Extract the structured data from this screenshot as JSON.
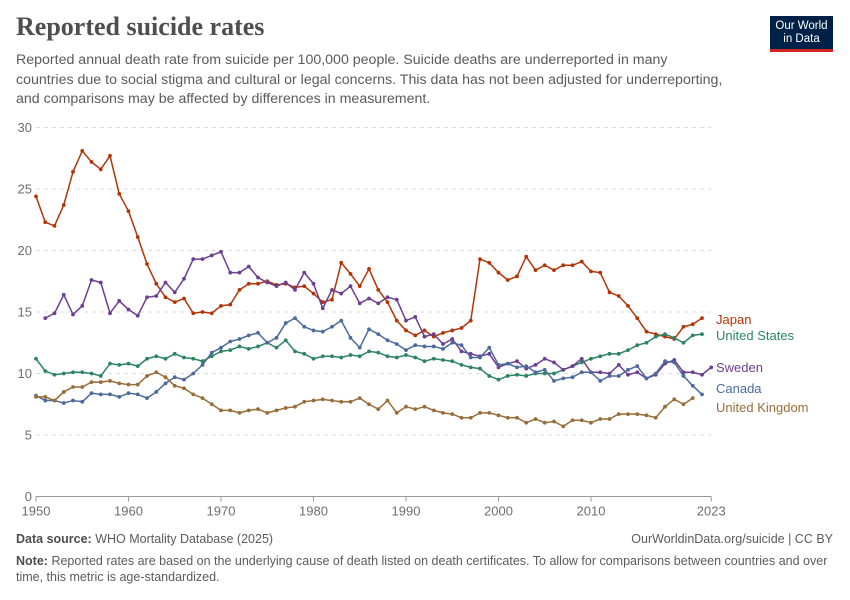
{
  "title": "Reported suicide rates",
  "subtitle_lines": [
    "Reported annual death rate from suicide per 100,000 people. Suicide deaths are underreported in many",
    "countries due to social stigma and cultural or legal concerns. This data has not been adjusted for underreporting,",
    "and comparisons may be affected by differences in measurement."
  ],
  "logo": {
    "line1": "Our World",
    "line2": "in Data"
  },
  "footer": {
    "source_label": "Data source:",
    "source_text": "WHO Mortality Database (2025)",
    "license": "OurWorldinData.org/suicide | CC BY",
    "note_label": "Note:",
    "note_text": "Reported rates are based on the underlying cause of death listed on death certificates. To allow for comparisons between countries and over time, this metric is age-standardized."
  },
  "chart_data": {
    "type": "line",
    "title": "Reported suicide rates",
    "xlabel": "",
    "ylabel": "",
    "xlim": [
      1950,
      2023
    ],
    "ylim": [
      0,
      30
    ],
    "x_ticks": [
      "1950",
      "1960",
      "1970",
      "1980",
      "1990",
      "2000",
      "2010",
      "2023"
    ],
    "y_ticks": [
      "0",
      "5",
      "10",
      "15",
      "20",
      "25",
      "30"
    ],
    "grid": "horizontal dashed",
    "legend": "right (end-of-line labels)",
    "series": [
      {
        "name": "Japan",
        "color": "#b13507",
        "start_year": 1950,
        "values": [
          24.4,
          22.3,
          22.0,
          23.7,
          26.4,
          28.1,
          27.2,
          26.6,
          27.7,
          24.6,
          23.2,
          21.1,
          18.9,
          17.3,
          16.2,
          15.8,
          16.1,
          14.9,
          15.0,
          14.9,
          15.5,
          15.6,
          16.8,
          17.3,
          17.3,
          17.5,
          17.2,
          17.3,
          17.0,
          17.1,
          16.5,
          15.8,
          16.0,
          19.0,
          18.1,
          17.1,
          18.5,
          16.8,
          15.8,
          14.3,
          13.5,
          13.1,
          13.5,
          13.0,
          13.3,
          13.5,
          13.7,
          14.3,
          19.3,
          19.0,
          18.2,
          17.6,
          17.9,
          19.5,
          18.4,
          18.8,
          18.4,
          18.8,
          18.8,
          19.1,
          18.3,
          18.2,
          16.6,
          16.3,
          15.5,
          14.5,
          13.4,
          13.2,
          13.0,
          12.8,
          13.8,
          14.0,
          14.5
        ]
      },
      {
        "name": "United States",
        "color": "#2c8465",
        "start_year": 1950,
        "values": [
          11.2,
          10.2,
          9.9,
          10.0,
          10.1,
          10.1,
          10.0,
          9.8,
          10.8,
          10.7,
          10.8,
          10.6,
          11.2,
          11.4,
          11.2,
          11.6,
          11.3,
          11.2,
          11.0,
          11.4,
          11.8,
          11.9,
          12.2,
          12.0,
          12.2,
          12.5,
          12.1,
          12.7,
          11.8,
          11.6,
          11.2,
          11.4,
          11.4,
          11.3,
          11.5,
          11.4,
          11.8,
          11.7,
          11.4,
          11.3,
          11.5,
          11.3,
          11.0,
          11.2,
          11.1,
          11.0,
          10.7,
          10.5,
          10.4,
          9.8,
          9.5,
          9.8,
          9.9,
          9.8,
          10.0,
          10.0,
          10.0,
          10.3,
          10.6,
          10.9,
          11.2,
          11.4,
          11.6,
          11.6,
          11.9,
          12.3,
          12.5,
          13.0,
          13.2,
          12.9,
          12.5,
          13.1,
          13.2
        ]
      },
      {
        "name": "Sweden",
        "color": "#6d3e91",
        "start_year": 1951,
        "values": [
          14.5,
          14.9,
          16.4,
          14.8,
          15.5,
          17.6,
          17.4,
          14.9,
          15.9,
          15.2,
          14.7,
          16.2,
          16.3,
          17.4,
          16.6,
          17.7,
          19.3,
          19.3,
          19.6,
          19.9,
          18.2,
          18.2,
          18.7,
          17.8,
          17.4,
          17.1,
          17.4,
          16.8,
          18.2,
          17.3,
          15.3,
          16.8,
          16.5,
          17.1,
          15.7,
          16.1,
          15.7,
          16.2,
          16.0,
          14.3,
          14.6,
          13.0,
          13.2,
          12.4,
          12.8,
          11.8,
          11.6,
          11.4,
          11.6,
          10.5,
          10.8,
          11.0,
          10.4,
          10.7,
          11.2,
          10.9,
          10.3,
          10.6,
          11.2,
          10.1,
          10.1,
          10.0,
          10.7,
          9.9,
          10.1,
          9.6,
          9.9,
          10.8,
          11.1,
          10.1,
          10.1,
          9.9,
          10.5
        ]
      },
      {
        "name": "Canada",
        "color": "#4c6a9c",
        "start_year": 1950,
        "values": [
          8.2,
          7.8,
          7.8,
          7.6,
          7.8,
          7.7,
          8.4,
          8.3,
          8.3,
          8.1,
          8.4,
          8.3,
          8.0,
          8.5,
          9.2,
          9.7,
          9.5,
          10.0,
          10.7,
          11.7,
          12.1,
          12.6,
          12.8,
          13.1,
          13.3,
          12.5,
          12.9,
          14.1,
          14.5,
          13.8,
          13.5,
          13.4,
          13.8,
          14.3,
          12.9,
          12.1,
          13.6,
          13.2,
          12.7,
          12.4,
          11.9,
          12.3,
          12.2,
          12.2,
          12.0,
          12.5,
          12.3,
          11.3,
          11.3,
          12.1,
          10.7,
          10.8,
          10.5,
          10.6,
          10.1,
          10.3,
          9.4,
          9.6,
          9.7,
          10.1,
          10.1,
          9.4,
          9.8,
          9.8,
          10.3,
          10.6,
          9.6,
          10.0,
          11.0,
          10.9,
          9.8,
          9.0,
          8.3
        ]
      },
      {
        "name": "United Kingdom",
        "color": "#996d39",
        "start_year": 1950,
        "values": [
          8.1,
          8.1,
          7.8,
          8.5,
          8.9,
          8.9,
          9.3,
          9.3,
          9.4,
          9.2,
          9.1,
          9.1,
          9.8,
          10.1,
          9.7,
          9.0,
          8.8,
          8.3,
          8.0,
          7.5,
          7.0,
          7.0,
          6.8,
          7.0,
          7.1,
          6.8,
          7.0,
          7.2,
          7.3,
          7.7,
          7.8,
          7.9,
          7.8,
          7.7,
          7.7,
          8.0,
          7.5,
          7.1,
          7.8,
          6.8,
          7.3,
          7.1,
          7.3,
          7.0,
          6.8,
          6.7,
          6.4,
          6.4,
          6.8,
          6.8,
          6.6,
          6.4,
          6.4,
          6.0,
          6.3,
          6.0,
          6.1,
          5.7,
          6.2,
          6.2,
          6.0,
          6.3,
          6.3,
          6.7,
          6.7,
          6.7,
          6.6,
          6.4,
          7.3,
          7.9,
          7.5,
          8.0
        ]
      }
    ]
  }
}
